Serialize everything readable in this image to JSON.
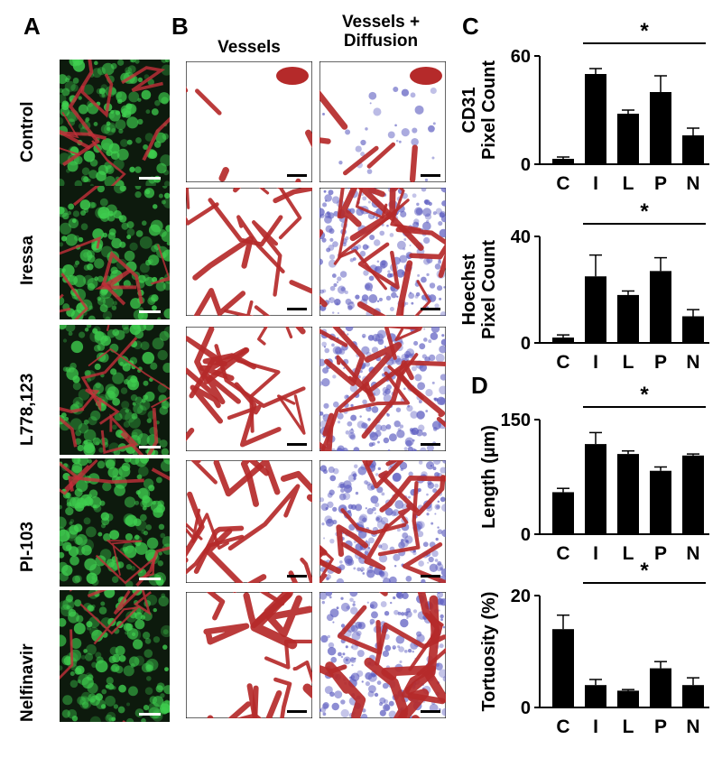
{
  "panels": {
    "a": "A",
    "b": "B",
    "c": "C",
    "d": "D"
  },
  "row_labels": [
    "Control",
    "Iressa",
    "L778,123",
    "PI-103",
    "Nelfinavir"
  ],
  "col_headers": {
    "vessels": "Vessels",
    "vessels_diffusion_1": "Vessels +",
    "vessels_diffusion_2": "Diffusion"
  },
  "colors": {
    "bar": "#000000",
    "vessel": "#b52a2a",
    "diffusion": "#5c5cc0",
    "fluor_bg": "#0d1a0d",
    "fluor_green": "#3fcf4f",
    "fluor_red": "#c3303a"
  },
  "chart_data": [
    {
      "type": "bar",
      "id": "cd31",
      "ylabel": "CD31 Pixel Count",
      "ylabel_lines": [
        "CD31",
        "Pixel Count"
      ],
      "categories": [
        "C",
        "I",
        "L",
        "P",
        "N"
      ],
      "values": [
        3,
        50,
        28,
        40,
        16
      ],
      "errors": [
        1,
        3,
        2,
        9,
        4
      ],
      "ylim": [
        0,
        60
      ],
      "yticks": [
        0,
        60
      ],
      "significance": "*",
      "sig_from": "I",
      "sig_to": "N"
    },
    {
      "type": "bar",
      "id": "hoechst",
      "ylabel": "Hoechst Pixel Count",
      "ylabel_lines": [
        "Hoechst",
        "Pixel Count"
      ],
      "categories": [
        "C",
        "I",
        "L",
        "P",
        "N"
      ],
      "values": [
        2,
        25,
        18,
        27,
        10
      ],
      "errors": [
        1,
        8,
        1.5,
        5,
        2.5
      ],
      "ylim": [
        0,
        40
      ],
      "yticks": [
        0,
        40
      ],
      "significance": "*",
      "sig_from": "I",
      "sig_to": "N"
    },
    {
      "type": "bar",
      "id": "length",
      "ylabel": "Length (µm)",
      "ylabel_lines": [
        "Length (µm)"
      ],
      "categories": [
        "C",
        "I",
        "L",
        "P",
        "N"
      ],
      "values": [
        55,
        118,
        105,
        83,
        103
      ],
      "errors": [
        5,
        15,
        4,
        5,
        2
      ],
      "ylim": [
        0,
        150
      ],
      "yticks": [
        0,
        150
      ],
      "significance": "*",
      "sig_from": "I",
      "sig_to": "N"
    },
    {
      "type": "bar",
      "id": "tortuosity",
      "ylabel": "Tortuosity (%)",
      "ylabel_lines": [
        "Tortuosity (%)"
      ],
      "categories": [
        "C",
        "I",
        "L",
        "P",
        "N"
      ],
      "values": [
        14,
        4,
        3,
        7,
        4
      ],
      "errors": [
        2.5,
        1,
        0.2,
        1.2,
        1.3
      ],
      "ylim": [
        0,
        20
      ],
      "yticks": [
        0,
        20
      ],
      "significance": "*",
      "sig_from": "I",
      "sig_to": "N"
    }
  ]
}
